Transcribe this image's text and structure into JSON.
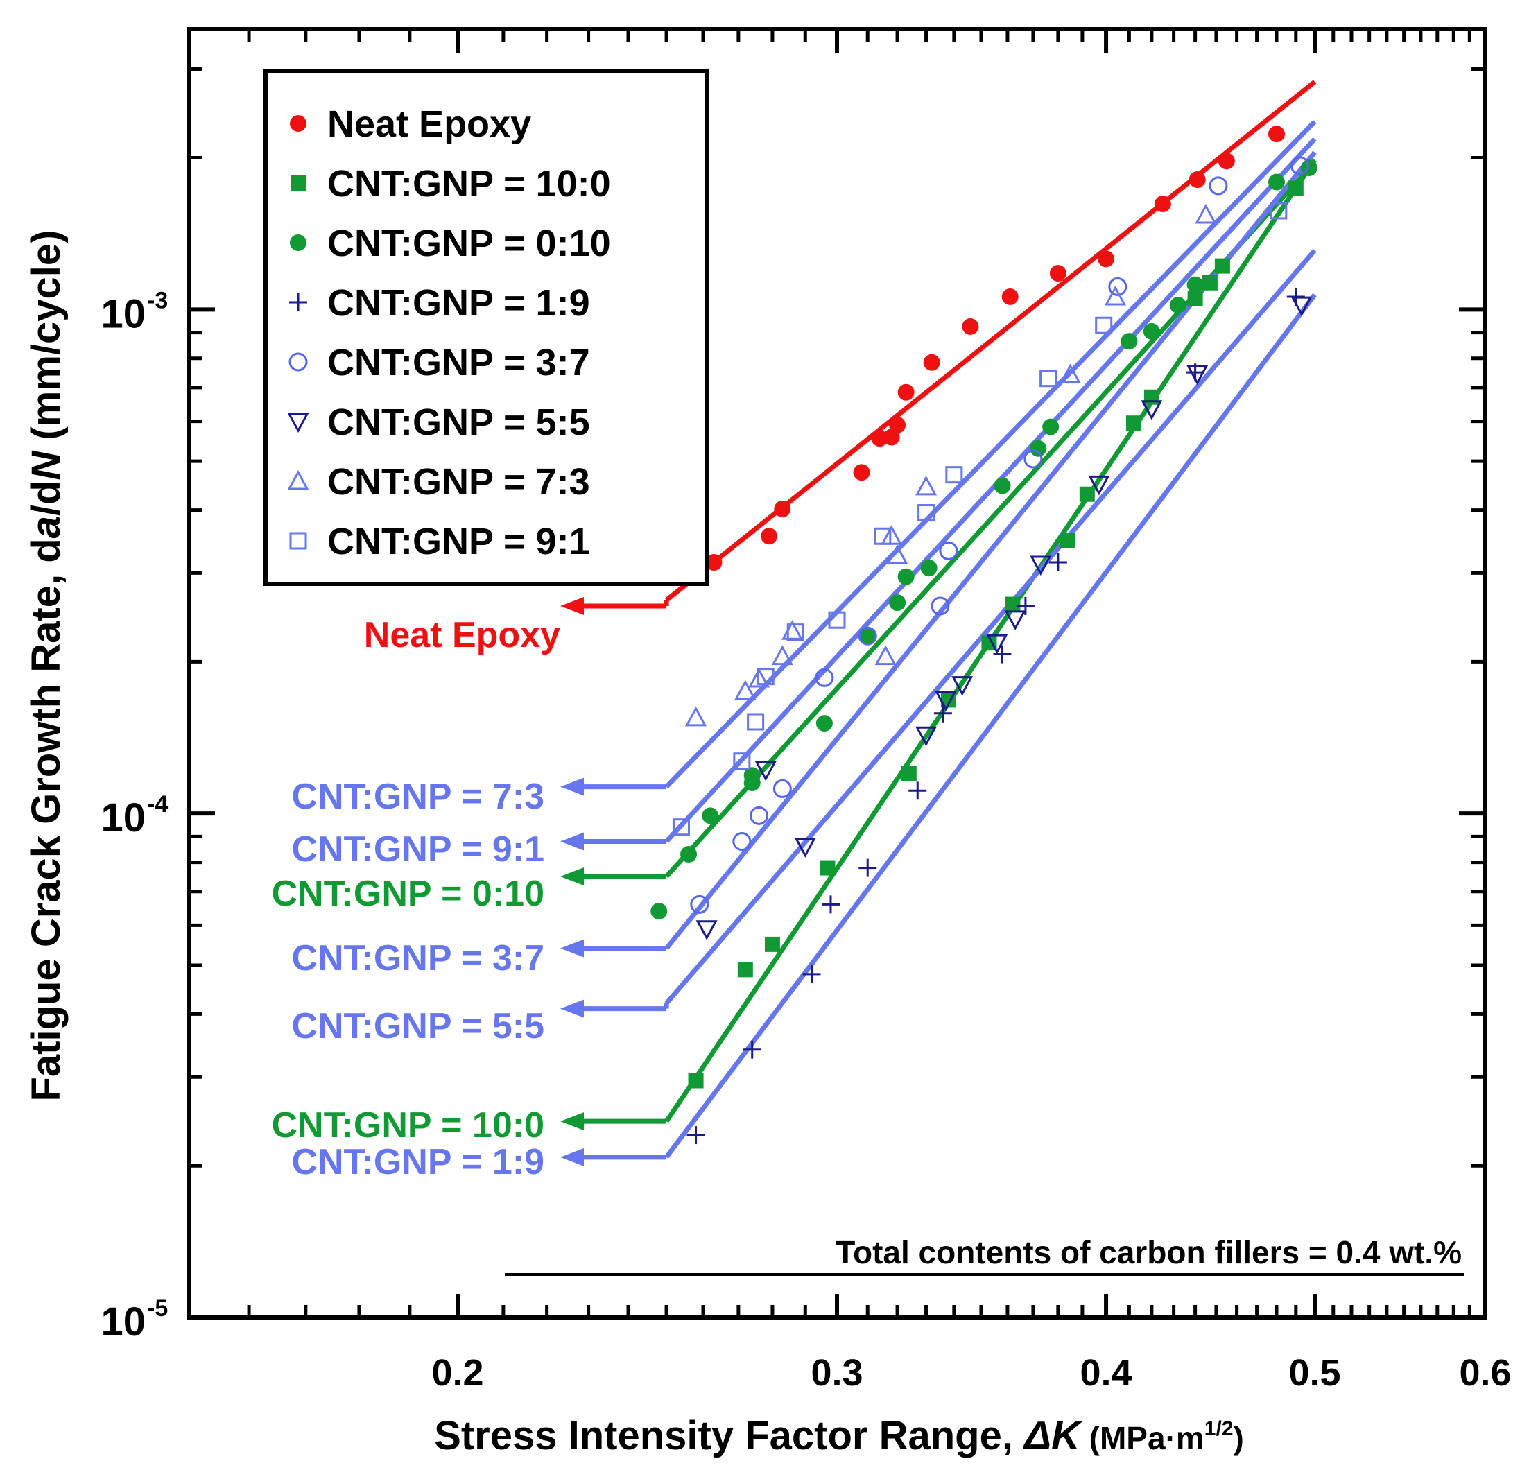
{
  "chart_data": {
    "type": "scatter",
    "xlabel_main": "Stress Intensity Factor Range, ",
    "xlabel_symbol": "ΔK",
    "xlabel_unit": "(MPa·m",
    "xlabel_unit_exp": "1/2",
    "xlabel_unit_close": ")",
    "ylabel_main": "Fatigue Crack Growth Rate, d",
    "ylabel_a": "a",
    "ylabel_mid": "/d",
    "ylabel_N": "N",
    "ylabel_unit": " (mm/cycle)",
    "x_scale": "log",
    "y_scale": "log",
    "xlim": [
      0.15,
      0.6
    ],
    "ylim": [
      1e-05,
      0.0036
    ],
    "x_ticks": [
      {
        "value": 0.2,
        "label": "0.2"
      },
      {
        "value": 0.3,
        "label": "0.3"
      },
      {
        "value": 0.4,
        "label": "0.4"
      },
      {
        "value": 0.5,
        "label": "0.5"
      },
      {
        "value": 0.6,
        "label": "0.6"
      }
    ],
    "y_ticks": [
      {
        "value": 1e-05,
        "base": "10",
        "exp": "-5"
      },
      {
        "value": 0.0001,
        "base": "10",
        "exp": "-4"
      },
      {
        "value": 0.001,
        "base": "10",
        "exp": "-3"
      }
    ],
    "annotation": "Total contents of carbon fillers = 0.4 wt.%",
    "legend_position": "top-left",
    "series": [
      {
        "name": "Neat Epoxy",
        "label": "Neat Epoxy",
        "color": "#ee1111",
        "marker": "filled-circle",
        "fit": [
          [
            0.25,
            0.000265
          ],
          [
            0.5,
            0.00283
          ]
        ],
        "label_y": 0.000258,
        "x": [
          0.263,
          0.279,
          0.283,
          0.308,
          0.314,
          0.318,
          0.32,
          0.323,
          0.332,
          0.346,
          0.361,
          0.38,
          0.4,
          0.425,
          0.441,
          0.455,
          0.48
        ],
        "y": [
          0.000315,
          0.000355,
          0.000402,
          0.000475,
          0.000555,
          0.000558,
          0.00059,
          0.000685,
          0.000785,
          0.000925,
          0.00106,
          0.00118,
          0.00126,
          0.00162,
          0.00181,
          0.00197,
          0.00223
        ]
      },
      {
        "name": "CNT:GNP = 10:0",
        "label": "CNT:GNP = 10:0",
        "color": "#119933",
        "marker": "filled-square",
        "fit": [
          [
            0.25,
            2.45e-05
          ],
          [
            0.5,
            0.00198
          ]
        ],
        "label_y": 2.45e-05,
        "x": [
          0.258,
          0.272,
          0.28,
          0.297,
          0.324,
          0.338,
          0.353,
          0.362,
          0.384,
          0.392,
          0.412,
          0.42,
          0.44,
          0.447,
          0.453,
          0.49
        ],
        "y": [
          2.95e-05,
          4.9e-05,
          5.5e-05,
          7.8e-05,
          0.00012,
          0.000168,
          0.000218,
          0.00026,
          0.000348,
          0.00043,
          0.000595,
          0.00067,
          0.00105,
          0.00113,
          0.00122,
          0.00174
        ]
      },
      {
        "name": "CNT:GNP = 0:10",
        "label": "CNT:GNP = 0:10",
        "color": "#119933",
        "marker": "filled-circle",
        "fit": [
          [
            0.25,
            7.5e-05
          ],
          [
            0.5,
            0.00196
          ]
        ],
        "label_y": 7.5e-05,
        "x": [
          0.248,
          0.256,
          0.262,
          0.274,
          0.274,
          0.296,
          0.31,
          0.32,
          0.323,
          0.331,
          0.358,
          0.372,
          0.377,
          0.41,
          0.42,
          0.432,
          0.44,
          0.48,
          0.497
        ],
        "y": [
          6.4e-05,
          8.3e-05,
          9.9e-05,
          0.000115,
          0.000119,
          0.000151,
          0.000226,
          0.000262,
          0.000295,
          0.000307,
          0.000447,
          0.00053,
          0.000585,
          0.000865,
          0.000905,
          0.00102,
          0.00112,
          0.00179,
          0.00191
        ]
      },
      {
        "name": "CNT:GNP = 1:9",
        "label": "CNT:GNP = 1:9",
        "color": "#1a1a88",
        "marker": "plus",
        "fit": [
          [
            0.25,
            2.08e-05
          ],
          [
            0.5,
            0.00107
          ]
        ],
        "label_y": 2.08e-05,
        "x": [
          0.258,
          0.274,
          0.292,
          0.298,
          0.31,
          0.327,
          0.336,
          0.358,
          0.367,
          0.38,
          0.44,
          0.49
        ],
        "y": [
          2.3e-05,
          3.4e-05,
          4.8e-05,
          6.6e-05,
          7.8e-05,
          0.000111,
          0.000158,
          0.000207,
          0.000258,
          0.000315,
          0.00075,
          0.00106
        ]
      },
      {
        "name": "CNT:GNP = 3:7",
        "label": "CNT:GNP = 3:7",
        "color": "#5566ee",
        "marker": "open-circle",
        "fit": [
          [
            0.25,
            5.4e-05
          ],
          [
            0.5,
            0.00205
          ]
        ],
        "label_y": 5.4e-05,
        "x": [
          0.259,
          0.271,
          0.276,
          0.283,
          0.296,
          0.31,
          0.335,
          0.338,
          0.37,
          0.405,
          0.451,
          0.492
        ],
        "y": [
          6.6e-05,
          8.8e-05,
          9.9e-05,
          0.000112,
          0.000186,
          0.000225,
          0.000258,
          0.000332,
          0.000505,
          0.00111,
          0.00176,
          0.00193
        ]
      },
      {
        "name": "CNT:GNP = 5:5",
        "label": "CNT:GNP = 5:5",
        "color": "#1a1a88",
        "marker": "open-triangle-down",
        "fit": [
          [
            0.25,
            4.2e-05
          ],
          [
            0.5,
            0.00131
          ]
        ],
        "label_y": 4.1e-05,
        "x": [
          0.261,
          0.278,
          0.29,
          0.33,
          0.337,
          0.343,
          0.356,
          0.363,
          0.373,
          0.397,
          0.42,
          0.441,
          0.493
        ],
        "y": [
          5.9e-05,
          0.000122,
          8.6e-05,
          0.000143,
          0.000168,
          0.00018,
          0.000218,
          0.000243,
          0.000312,
          0.00045,
          0.000635,
          0.000745,
          0.00102
        ]
      },
      {
        "name": "CNT:GNP = 7:3",
        "label": "CNT:GNP = 7:3",
        "color": "#6677ee",
        "marker": "open-triangle-up",
        "fit": [
          [
            0.25,
            0.000113
          ],
          [
            0.5,
            0.00236
          ]
        ],
        "label_y": 0.000113,
        "x": [
          0.258,
          0.272,
          0.276,
          0.283,
          0.286,
          0.316,
          0.318,
          0.32,
          0.33,
          0.385,
          0.404,
          0.445
        ],
        "y": [
          0.000155,
          0.000175,
          0.000185,
          0.000205,
          0.00023,
          0.000205,
          0.000355,
          0.000325,
          0.000445,
          0.000742,
          0.00106,
          0.00154
        ]
      },
      {
        "name": "CNT:GNP = 9:1",
        "label": "CNT:GNP = 9:1",
        "color": "#6677ee",
        "marker": "open-square",
        "fit": [
          [
            0.25,
            8.8e-05
          ],
          [
            0.5,
            0.00218
          ]
        ],
        "label_y": 8.8e-05,
        "x": [
          0.254,
          0.271,
          0.275,
          0.278,
          0.287,
          0.3,
          0.315,
          0.33,
          0.34,
          0.376,
          0.399,
          0.481
        ],
        "y": [
          9.4e-05,
          0.000127,
          0.000152,
          0.000187,
          0.000229,
          0.000242,
          0.000355,
          0.000395,
          0.00047,
          0.00073,
          0.00093,
          0.00157
        ]
      }
    ]
  }
}
